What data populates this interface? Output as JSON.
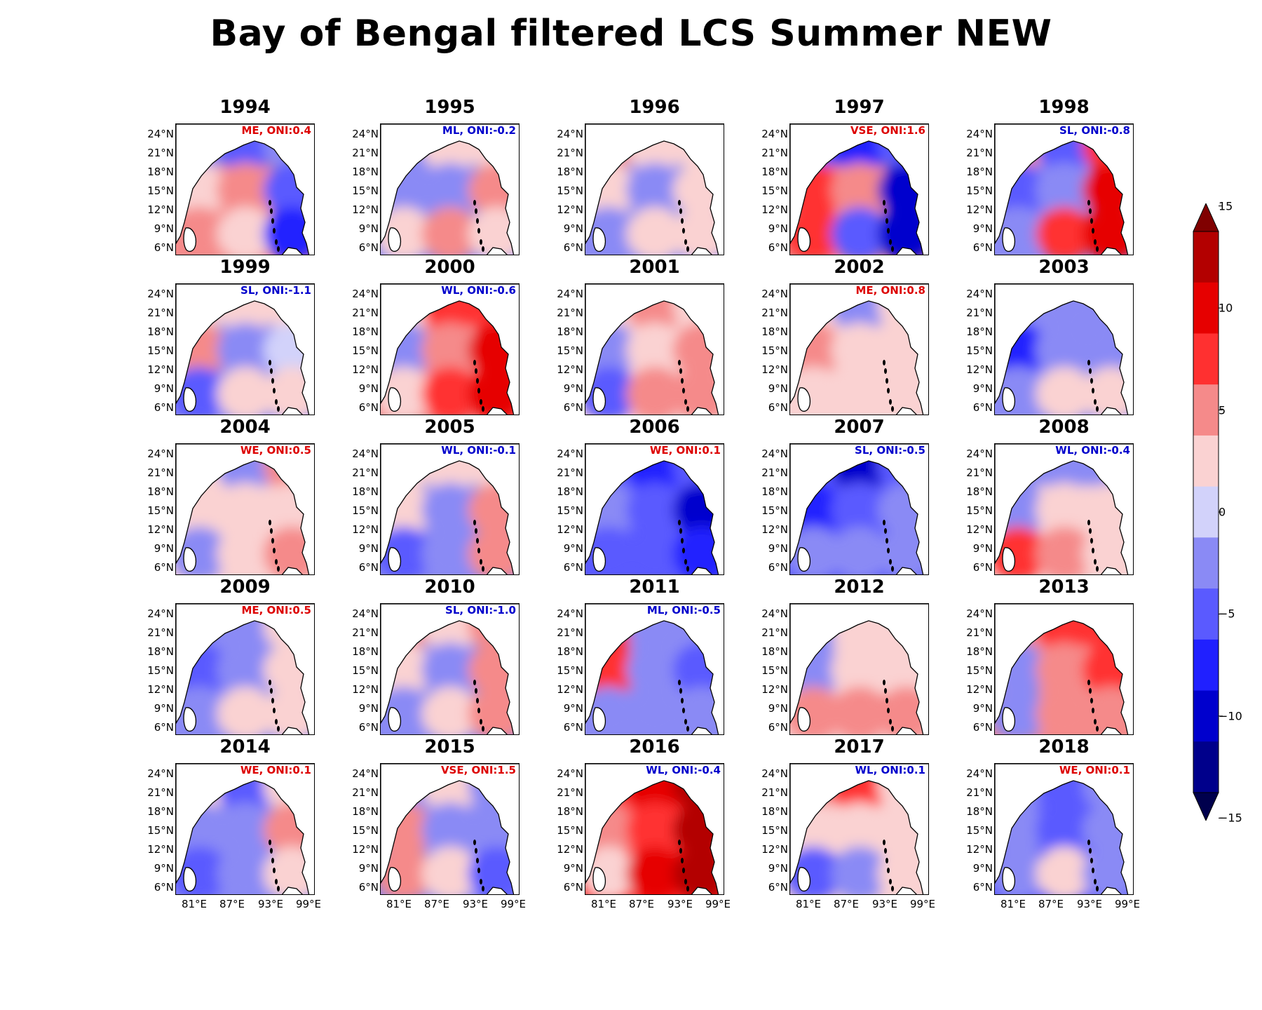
{
  "chart_data": {
    "type": "heatmap",
    "title": "Bay of Bengal filtered LCS Summer NEW",
    "lat_ticks": [
      "24°N",
      "21°N",
      "18°N",
      "15°N",
      "12°N",
      "9°N",
      "6°N"
    ],
    "lon_ticks": [
      "81°E",
      "87°E",
      "93°E",
      "99°E"
    ],
    "colorbar": {
      "ticks": [
        "15",
        "10",
        "5",
        "0",
        "−5",
        "−10",
        "−15"
      ],
      "range": [
        -15,
        15
      ],
      "extend": "both",
      "levels": [
        -15,
        -12.5,
        -10,
        -7.5,
        -5,
        -2.5,
        0,
        2.5,
        5,
        7.5,
        10,
        12.5,
        15
      ],
      "colors": [
        "#00004d",
        "#00008b",
        "#0000cd",
        "#2020ff",
        "#5a5aff",
        "#8a8af5",
        "#d2d2fa",
        "#fad2d2",
        "#f58a8a",
        "#ff3030",
        "#e60000",
        "#b30000",
        "#800000"
      ]
    },
    "panels": [
      {
        "year": "1994",
        "annotation": "ME, ONI:0.4",
        "ann_color": "#dd0000",
        "pattern": [
          [
            -1,
            -2,
            -1
          ],
          [
            1,
            2,
            -2
          ],
          [
            2,
            1,
            -3
          ]
        ]
      },
      {
        "year": "1995",
        "annotation": "ML, ONI:-0.2",
        "ann_color": "#0000cc",
        "pattern": [
          [
            -1,
            1,
            1
          ],
          [
            -1,
            -1,
            2
          ],
          [
            1,
            2,
            1
          ]
        ]
      },
      {
        "year": "1996",
        "annotation": "",
        "ann_color": "#000000",
        "pattern": [
          [
            2,
            1,
            1
          ],
          [
            1,
            -1,
            1
          ],
          [
            -1,
            1,
            1
          ]
        ]
      },
      {
        "year": "1997",
        "annotation": "VSE, ONI:1.6",
        "ann_color": "#dd0000",
        "pattern": [
          [
            -2,
            -3,
            -2
          ],
          [
            3,
            2,
            -4
          ],
          [
            3,
            -2,
            -4
          ]
        ]
      },
      {
        "year": "1998",
        "annotation": "SL, ONI:-0.8",
        "ann_color": "#0000cc",
        "pattern": [
          [
            2,
            -2,
            3
          ],
          [
            -2,
            -1,
            4
          ],
          [
            -1,
            3,
            4
          ]
        ]
      },
      {
        "year": "1999",
        "annotation": "SL, ONI:-1.1",
        "ann_color": "#0000cc",
        "pattern": [
          [
            1,
            1,
            1
          ],
          [
            2,
            -1,
            0
          ],
          [
            -2,
            1,
            1
          ]
        ]
      },
      {
        "year": "2000",
        "annotation": "WL, ONI:-0.6",
        "ann_color": "#0000cc",
        "pattern": [
          [
            1,
            3,
            3
          ],
          [
            -1,
            2,
            4
          ],
          [
            1,
            3,
            4
          ]
        ]
      },
      {
        "year": "2001",
        "annotation": "",
        "ann_color": "#000000",
        "pattern": [
          [
            1,
            2,
            1
          ],
          [
            -1,
            1,
            2
          ],
          [
            -2,
            2,
            2
          ]
        ]
      },
      {
        "year": "2002",
        "annotation": "ME, ONI:0.8",
        "ann_color": "#dd0000",
        "pattern": [
          [
            1,
            -1,
            1
          ],
          [
            2,
            1,
            1
          ],
          [
            1,
            1,
            1
          ]
        ]
      },
      {
        "year": "2003",
        "annotation": "",
        "ann_color": "#000000",
        "pattern": [
          [
            -1,
            -1,
            -1
          ],
          [
            -3,
            -1,
            -1
          ],
          [
            -1,
            1,
            1
          ]
        ]
      },
      {
        "year": "2004",
        "annotation": "WE, ONI:0.5",
        "ann_color": "#dd0000",
        "pattern": [
          [
            1,
            -1,
            2
          ],
          [
            1,
            1,
            1
          ],
          [
            -1,
            1,
            2
          ]
        ]
      },
      {
        "year": "2005",
        "annotation": "WL, ONI:-0.1",
        "ann_color": "#0000cc",
        "pattern": [
          [
            1,
            1,
            1
          ],
          [
            1,
            -1,
            2
          ],
          [
            -2,
            -1,
            2
          ]
        ]
      },
      {
        "year": "2006",
        "annotation": "WE, ONI:0.1",
        "ann_color": "#dd0000",
        "pattern": [
          [
            -2,
            -3,
            -2
          ],
          [
            -1,
            -2,
            -4
          ],
          [
            -2,
            -2,
            -3
          ]
        ]
      },
      {
        "year": "2007",
        "annotation": "SL, ONI:-0.5",
        "ann_color": "#0000cc",
        "pattern": [
          [
            -2,
            -4,
            -2
          ],
          [
            -3,
            -2,
            -1
          ],
          [
            -1,
            -1,
            -1
          ]
        ]
      },
      {
        "year": "2008",
        "annotation": "WL, ONI:-0.4",
        "ann_color": "#0000cc",
        "pattern": [
          [
            -1,
            -1,
            -1
          ],
          [
            -1,
            1,
            1
          ],
          [
            3,
            2,
            1
          ]
        ]
      },
      {
        "year": "2009",
        "annotation": "ME, ONI:0.5",
        "ann_color": "#dd0000",
        "pattern": [
          [
            -1,
            -1,
            1
          ],
          [
            -2,
            -1,
            1
          ],
          [
            -1,
            1,
            1
          ]
        ]
      },
      {
        "year": "2010",
        "annotation": "SL, ONI:-1.0",
        "ann_color": "#0000cc",
        "pattern": [
          [
            2,
            1,
            2
          ],
          [
            1,
            -1,
            2
          ],
          [
            -1,
            1,
            2
          ]
        ]
      },
      {
        "year": "2011",
        "annotation": "ML, ONI:-0.5",
        "ann_color": "#0000cc",
        "pattern": [
          [
            3,
            -1,
            -1
          ],
          [
            3,
            -1,
            -2
          ],
          [
            -1,
            -1,
            -1
          ]
        ]
      },
      {
        "year": "2012",
        "annotation": "",
        "ann_color": "#000000",
        "pattern": [
          [
            -1,
            1,
            1
          ],
          [
            -1,
            1,
            1
          ],
          [
            2,
            2,
            2
          ]
        ]
      },
      {
        "year": "2013",
        "annotation": "",
        "ann_color": "#000000",
        "pattern": [
          [
            2,
            3,
            3
          ],
          [
            -1,
            2,
            3
          ],
          [
            -1,
            2,
            2
          ]
        ]
      },
      {
        "year": "2014",
        "annotation": "WE, ONI:0.1",
        "ann_color": "#dd0000",
        "pattern": [
          [
            1,
            -2,
            1
          ],
          [
            -1,
            -1,
            2
          ],
          [
            -2,
            -1,
            1
          ]
        ]
      },
      {
        "year": "2015",
        "annotation": "VSE, ONI:1.5",
        "ann_color": "#dd0000",
        "pattern": [
          [
            -1,
            1,
            -1
          ],
          [
            2,
            -1,
            -1
          ],
          [
            2,
            1,
            -2
          ]
        ]
      },
      {
        "year": "2016",
        "annotation": "WL, ONI:-0.4",
        "ann_color": "#0000cc",
        "pattern": [
          [
            3,
            4,
            5
          ],
          [
            2,
            3,
            5
          ],
          [
            1,
            4,
            5
          ]
        ]
      },
      {
        "year": "2017",
        "annotation": "WL, ONI:0.1",
        "ann_color": "#0000cc",
        "pattern": [
          [
            2,
            3,
            1
          ],
          [
            1,
            1,
            1
          ],
          [
            -2,
            -1,
            1
          ]
        ]
      },
      {
        "year": "2018",
        "annotation": "WE, ONI:0.1",
        "ann_color": "#dd0000",
        "pattern": [
          [
            -1,
            -2,
            -1
          ],
          [
            -1,
            -2,
            -1
          ],
          [
            -1,
            1,
            -1
          ]
        ]
      }
    ]
  }
}
